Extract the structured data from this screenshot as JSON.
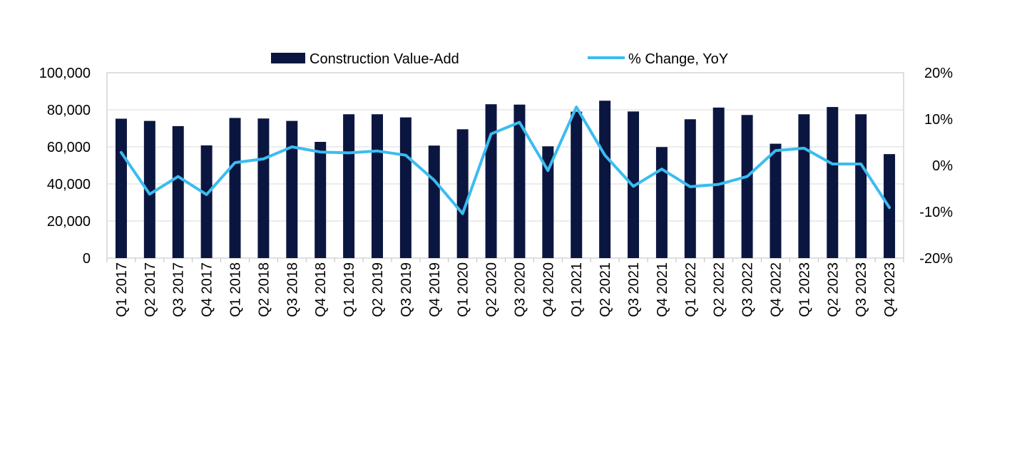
{
  "chart_data": {
    "type": "bar+line",
    "categories": [
      "Q1 2017",
      "Q2 2017",
      "Q3 2017",
      "Q4 2017",
      "Q1 2018",
      "Q2 2018",
      "Q3 2018",
      "Q4 2018",
      "Q1 2019",
      "Q2 2019",
      "Q3 2019",
      "Q4 2019",
      "Q1 2020",
      "Q2 2020",
      "Q3 2020",
      "Q4 2020",
      "Q1 2021",
      "Q2 2021",
      "Q3 2021",
      "Q4 2021",
      "Q1 2022",
      "Q2 2022",
      "Q3 2022",
      "Q4 2022",
      "Q1 2023",
      "Q2 2023",
      "Q3 2023",
      "Q4 2023"
    ],
    "series": [
      {
        "name": "Construction Value-Add",
        "type": "bar",
        "axis": "left",
        "color": "#0b1640",
        "values": [
          75200,
          74000,
          71200,
          60800,
          75600,
          75300,
          74000,
          62700,
          77600,
          77600,
          75900,
          60700,
          69500,
          83000,
          82800,
          60300,
          79000,
          84900,
          79100,
          59900,
          74900,
          81200,
          77200,
          61700,
          77600,
          81500,
          77600,
          56100
        ]
      },
      {
        "name": "% Change, YoY",
        "type": "line",
        "axis": "right",
        "color": "#3bbcf0",
        "values": [
          2.8,
          -6.2,
          -2.4,
          -6.3,
          0.6,
          1.4,
          4.0,
          2.9,
          2.7,
          3.1,
          2.2,
          -3.2,
          -10.4,
          6.8,
          9.3,
          -1.1,
          12.6,
          2.2,
          -4.5,
          -0.8,
          -4.6,
          -4.1,
          -2.4,
          3.2,
          3.7,
          0.3,
          0.3,
          -9.1
        ]
      }
    ],
    "y_left": {
      "min": 0,
      "max": 100000,
      "ticks": [
        "0",
        "20,000",
        "40,000",
        "60,000",
        "80,000",
        "100,000"
      ]
    },
    "y_right": {
      "min": -20,
      "max": 20,
      "ticks": [
        "-20%",
        "-10%",
        "0%",
        "10%",
        "20%"
      ]
    },
    "grid": true,
    "legend_position": "top-center",
    "title": ""
  }
}
